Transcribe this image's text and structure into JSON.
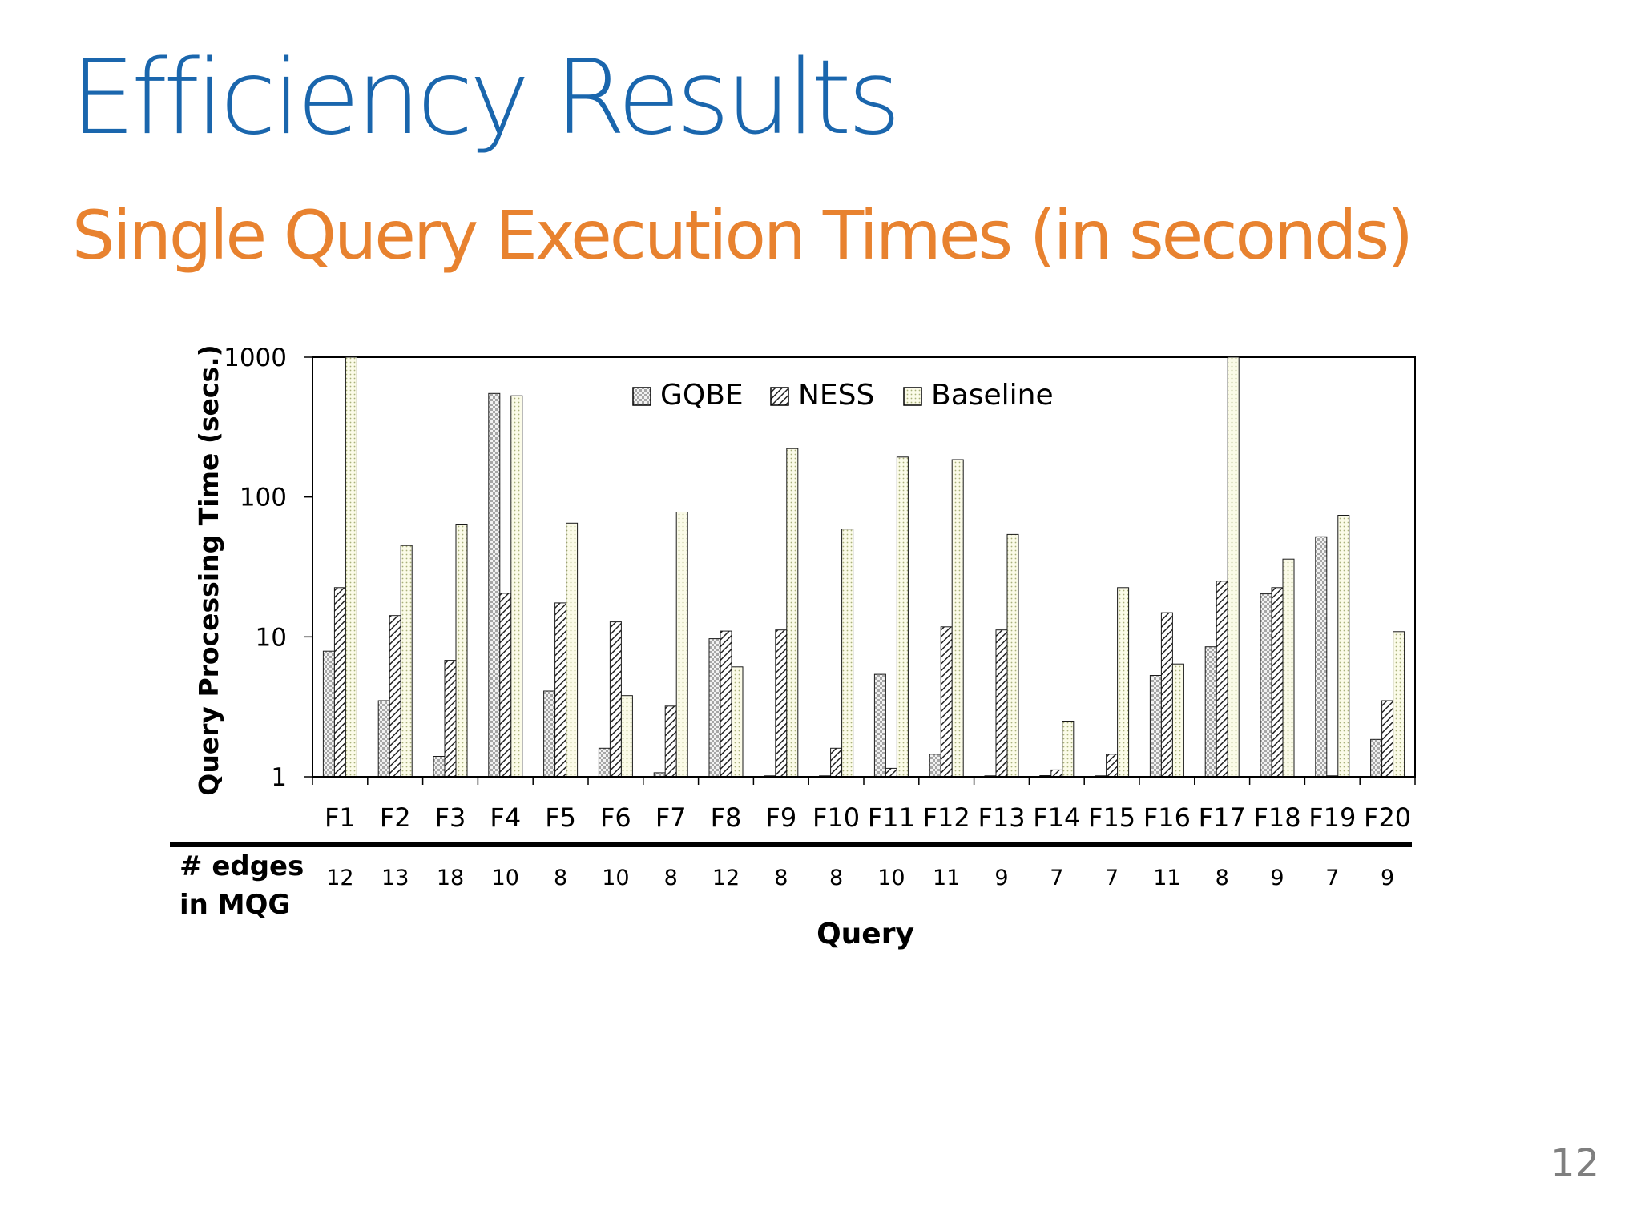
{
  "slide": {
    "title": "Efficiency Results",
    "subtitle": "Single Query Execution Times (in seconds)",
    "page_number": "12"
  },
  "colors": {
    "title": "#1a66ad",
    "subtitle": "#e8822f",
    "gqbe_fill": "#d9d9d9",
    "ness_fill": "#ffffff",
    "baseline_fill": "#fafae6"
  },
  "chart_data": {
    "type": "bar",
    "ylabel": "Query Processing Time (secs.)",
    "xlabel": "Query",
    "yscale": "log",
    "ylim": [
      1,
      1000
    ],
    "yticks": [
      1,
      10,
      100,
      1000
    ],
    "ytick_labels": [
      "1",
      "10",
      "100",
      "1000"
    ],
    "legend_position": "top-center",
    "categories": [
      "F1",
      "F2",
      "F3",
      "F4",
      "F5",
      "F6",
      "F7",
      "F8",
      "F9",
      "F10",
      "F11",
      "F12",
      "F13",
      "F14",
      "F15",
      "F16",
      "F17",
      "F18",
      "F19",
      "F20"
    ],
    "series": [
      {
        "name": "GQBE",
        "pattern": "checkered",
        "values": [
          7.9,
          3.5,
          1.4,
          550,
          4.1,
          1.6,
          1.07,
          9.7,
          1.0,
          1.0,
          5.4,
          1.45,
          1.0,
          1.02,
          1.0,
          5.3,
          8.5,
          20.3,
          52,
          1.85
        ]
      },
      {
        "name": "NESS",
        "pattern": "diagonal-hatch",
        "values": [
          22.5,
          14.2,
          6.8,
          20.5,
          17.5,
          12.8,
          3.2,
          11.0,
          11.2,
          1.6,
          1.15,
          11.8,
          11.2,
          1.12,
          1.45,
          14.9,
          25.0,
          22.5,
          1.0,
          3.5
        ]
      },
      {
        "name": "Baseline",
        "pattern": "dotted",
        "values": [
          1000,
          45,
          64,
          530,
          65,
          3.8,
          78,
          6.1,
          222,
          59,
          193,
          185,
          54,
          2.5,
          22.5,
          6.4,
          1000,
          36,
          74,
          10.9
        ]
      }
    ],
    "table": {
      "row_label": "# edges in MQG",
      "row_label_lines": [
        "# edges",
        "in MQG"
      ],
      "values": [
        "12",
        "13",
        "18",
        "10",
        "8",
        "10",
        "8",
        "12",
        "8",
        "8",
        "10",
        "11",
        "9",
        "7",
        "7",
        "11",
        "8",
        "9",
        "7",
        "9"
      ]
    }
  }
}
